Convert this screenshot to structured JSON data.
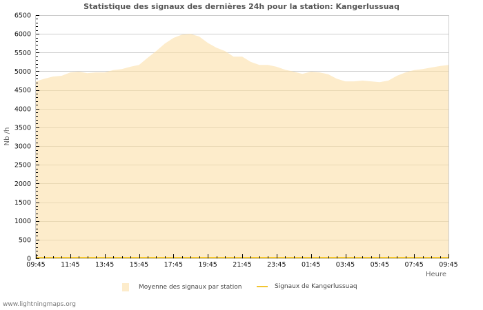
{
  "title": "Statistique des signaux des dernières 24h pour la station: Kangerlussuaq",
  "footer": "www.lightningmaps.org",
  "legend": [
    {
      "label": "Moyenne des signaux par station",
      "type": "area",
      "color": "#fdeccb"
    },
    {
      "label": "Signaux de Kangerlussuaq",
      "type": "line",
      "color": "#f2c531"
    }
  ],
  "colors": {
    "area_fill": "#fdeccb",
    "station_line": "#f2c531",
    "grid_major": "#cccccc",
    "grid_over_area": "#d9c9a3",
    "axis": "#cccccc",
    "title": "#555555"
  },
  "chart_data": {
    "type": "area",
    "title": "Statistique des signaux des dernières 24h pour la station: Kangerlussuaq",
    "xlabel": "Heure",
    "ylabel": "Nb /h",
    "ylim": [
      0,
      6500
    ],
    "yticks": [
      0,
      500,
      1000,
      1500,
      2000,
      2500,
      3000,
      3500,
      4000,
      4500,
      5000,
      5500,
      6000,
      6500
    ],
    "xtick_labels": [
      "09:45",
      "11:45",
      "13:45",
      "15:45",
      "17:45",
      "19:45",
      "21:45",
      "23:45",
      "01:45",
      "03:45",
      "05:45",
      "07:45",
      "09:45"
    ],
    "grid": true,
    "legend_position": "bottom",
    "x": [
      "09:45",
      "10:15",
      "10:45",
      "11:15",
      "11:45",
      "12:15",
      "12:45",
      "13:15",
      "13:45",
      "14:15",
      "14:45",
      "15:15",
      "15:45",
      "16:15",
      "16:45",
      "17:15",
      "17:45",
      "18:15",
      "18:45",
      "19:15",
      "19:45",
      "20:15",
      "20:45",
      "21:15",
      "21:45",
      "22:15",
      "22:45",
      "23:15",
      "23:45",
      "00:15",
      "00:45",
      "01:15",
      "01:45",
      "02:15",
      "02:45",
      "03:15",
      "03:45",
      "04:15",
      "04:45",
      "05:15",
      "05:45",
      "06:15",
      "06:45",
      "07:15",
      "07:45",
      "08:15",
      "08:45",
      "09:15",
      "09:45"
    ],
    "series": [
      {
        "name": "Moyenne des signaux par station",
        "type": "area",
        "values": [
          4730,
          4800,
          4860,
          4880,
          4970,
          4990,
          4950,
          4970,
          4970,
          5030,
          5060,
          5120,
          5170,
          5360,
          5540,
          5740,
          5890,
          5980,
          6000,
          5930,
          5760,
          5630,
          5540,
          5390,
          5390,
          5250,
          5170,
          5170,
          5120,
          5040,
          4990,
          4930,
          4990,
          4970,
          4920,
          4800,
          4730,
          4730,
          4750,
          4730,
          4710,
          4750,
          4880,
          4970,
          5030,
          5060,
          5100,
          5140,
          5170
        ]
      },
      {
        "name": "Signaux de Kangerlussuaq",
        "type": "line",
        "values": [
          0,
          0,
          0,
          0,
          0,
          0,
          0,
          0,
          0,
          0,
          0,
          0,
          0,
          0,
          0,
          0,
          0,
          0,
          0,
          0,
          0,
          0,
          0,
          0,
          0,
          0,
          0,
          0,
          0,
          0,
          0,
          0,
          0,
          0,
          0,
          0,
          0,
          0,
          0,
          0,
          0,
          0,
          0,
          0,
          0,
          0,
          0,
          0,
          0
        ]
      }
    ]
  }
}
